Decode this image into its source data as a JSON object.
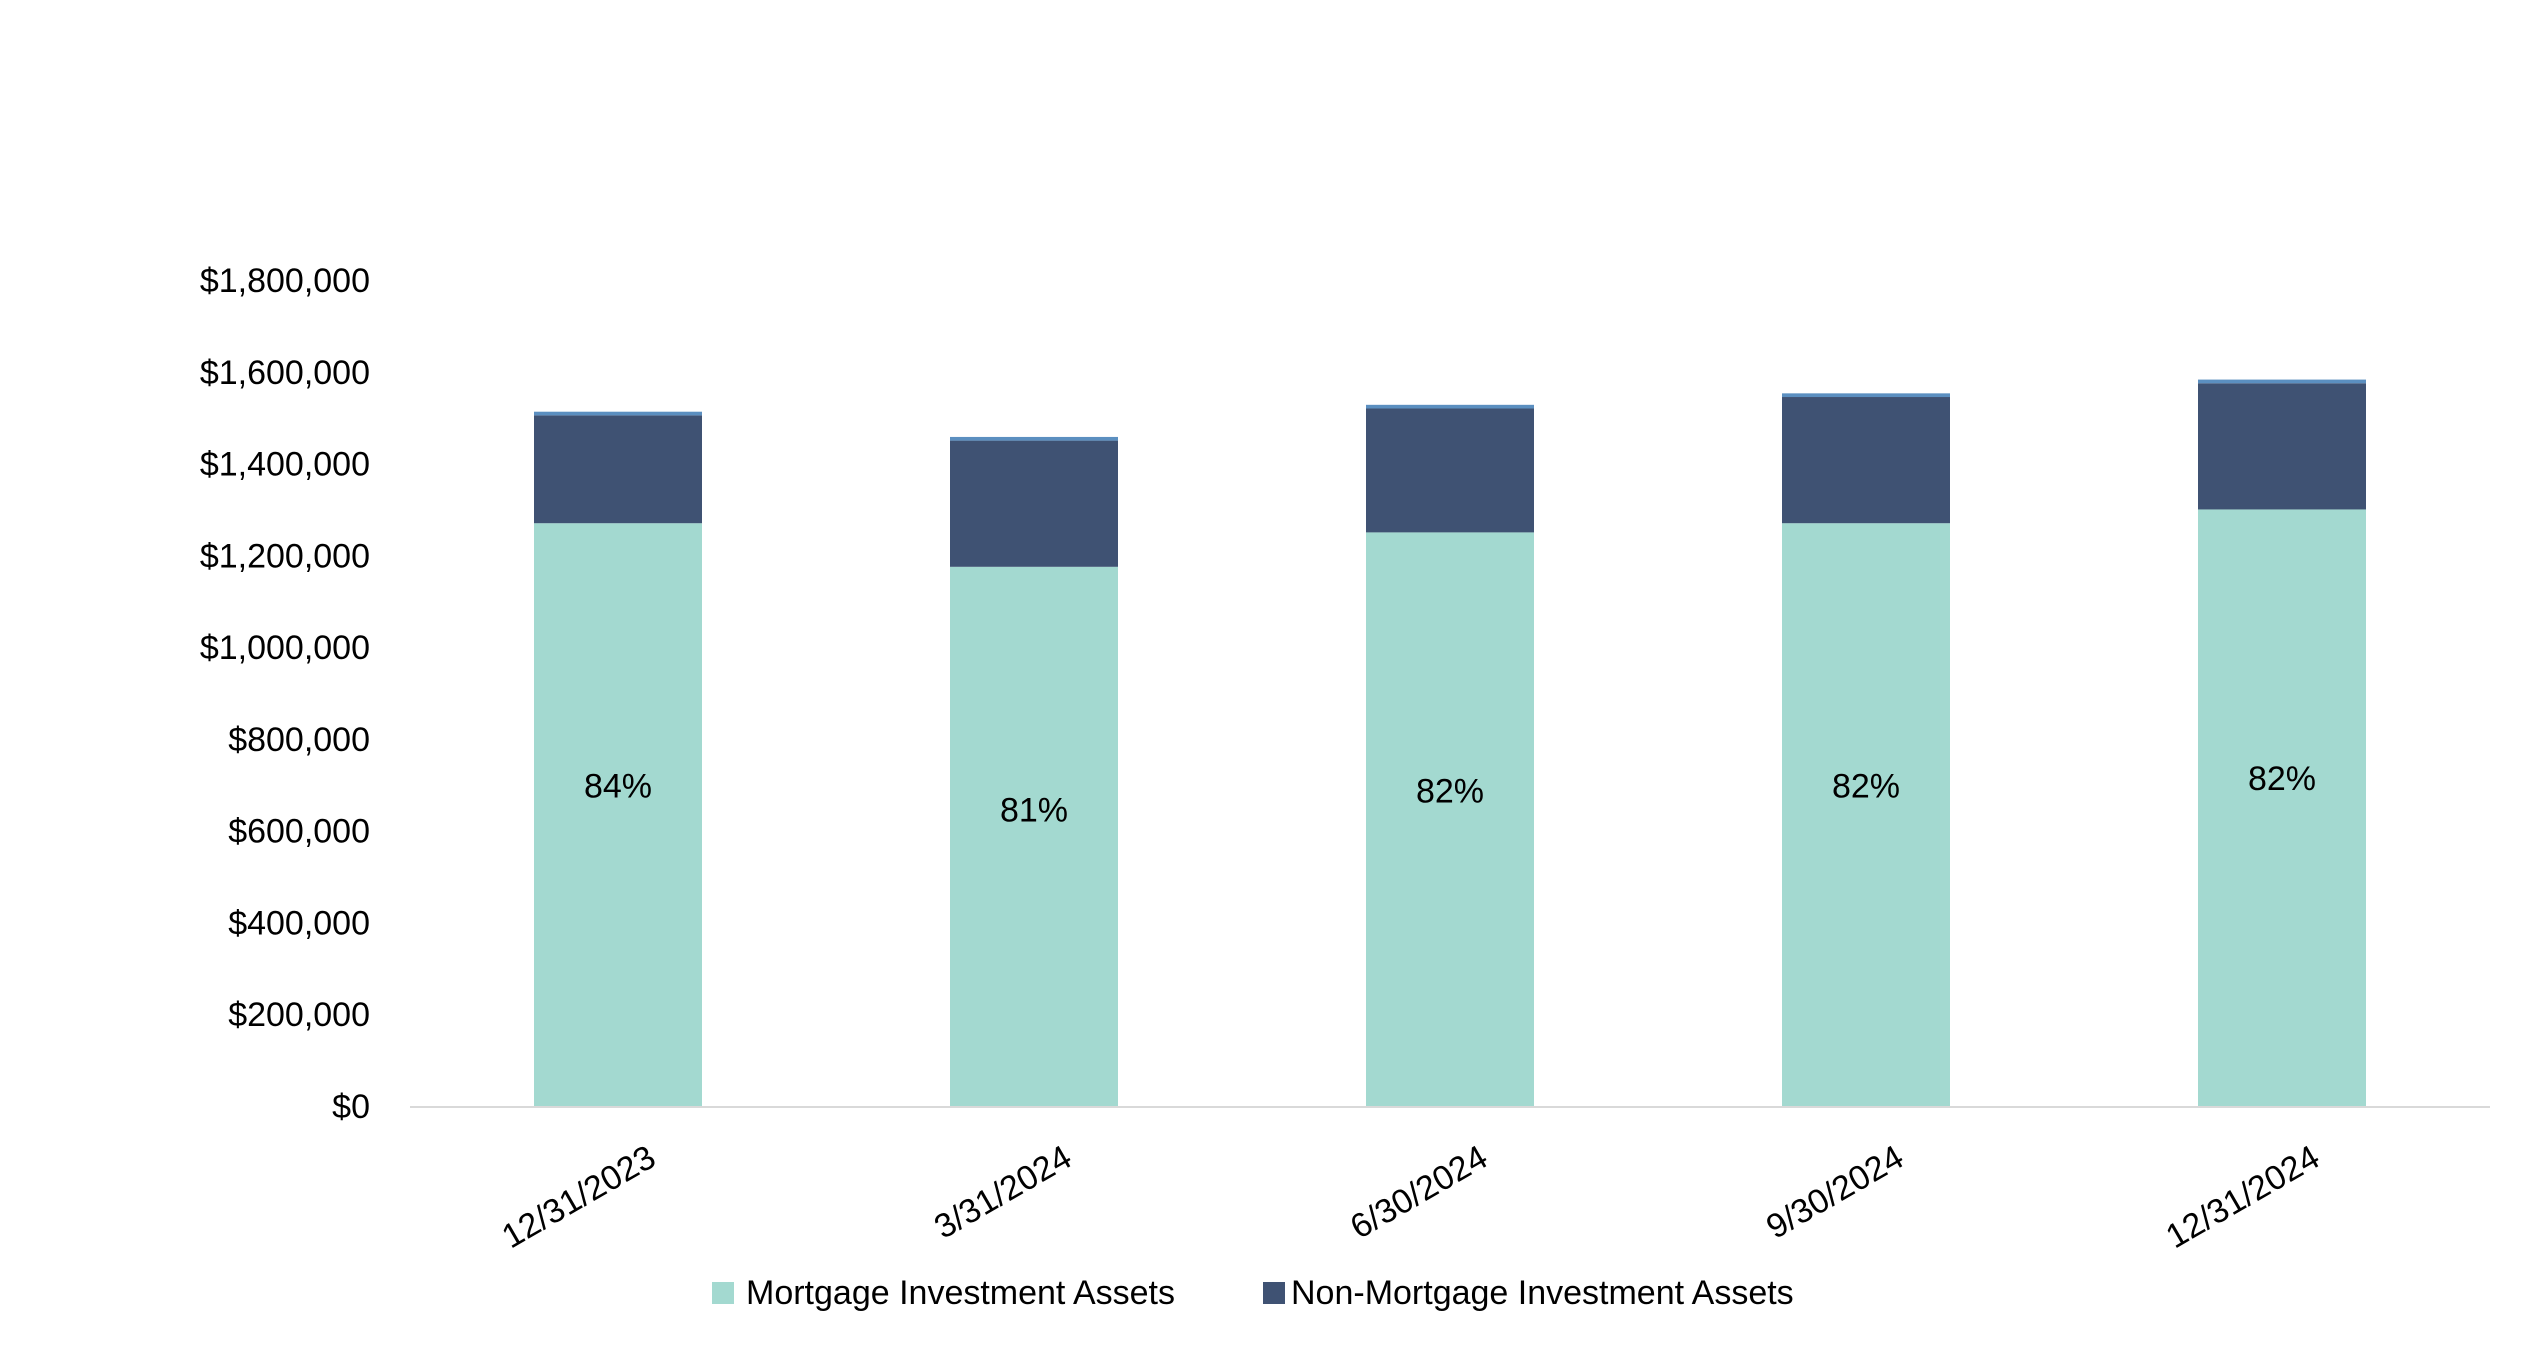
{
  "chart_data": {
    "type": "bar",
    "stacked": true,
    "title": "",
    "xlabel": "",
    "ylabel": "",
    "ylim": [
      0,
      1800000
    ],
    "yticks": [
      0,
      200000,
      400000,
      600000,
      800000,
      1000000,
      1200000,
      1400000,
      1600000,
      1800000
    ],
    "ytick_labels": [
      "$0",
      "$200,000",
      "$400,000",
      "$600,000",
      "$800,000",
      "$1,000,000",
      "$1,200,000",
      "$1,400,000",
      "$1,600,000",
      "$1,800,000"
    ],
    "categories": [
      "12/31/2023",
      "3/31/2024",
      "6/30/2024",
      "9/30/2024",
      "12/31/2024"
    ],
    "series": [
      {
        "name": "Mortgage Investment Assets",
        "color": "#a3d9d0",
        "values": [
          1270000,
          1175000,
          1250000,
          1270000,
          1300000
        ]
      },
      {
        "name": "Non-Mortgage Investment Assets",
        "color": "#3f5273",
        "values": [
          235000,
          275000,
          270000,
          275000,
          275000
        ]
      }
    ],
    "top_sliver": {
      "color": "#5b8fc0",
      "values": [
        8000,
        8000,
        8000,
        8000,
        8000
      ]
    },
    "data_labels": [
      "84%",
      "81%",
      "82%",
      "82%",
      "82%"
    ],
    "grid": false,
    "legend": "bottom-center"
  }
}
